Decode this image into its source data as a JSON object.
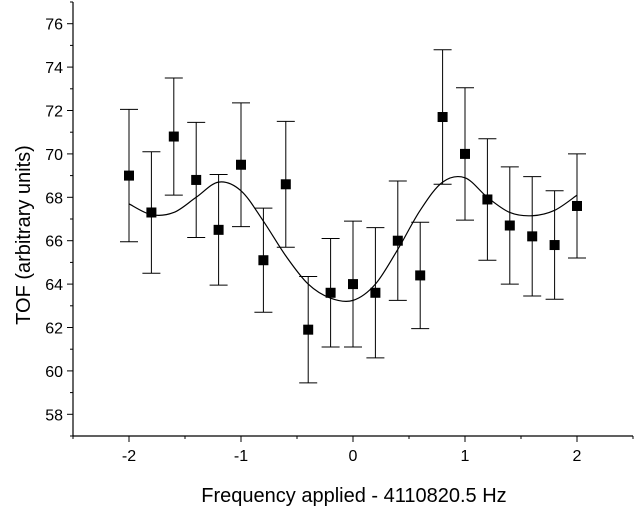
{
  "chart_data": {
    "type": "scatter",
    "title": "",
    "xlabel": "Frequency applied - 4110820.5 Hz",
    "ylabel": "TOF (arbitrary units)",
    "xlim": [
      -2.5,
      2.5
    ],
    "ylim": [
      57,
      77
    ],
    "xticks": [
      "-2",
      "-1",
      "0",
      "1",
      "2"
    ],
    "xtick_values": [
      -2,
      -1,
      0,
      1,
      2
    ],
    "yticks": [
      "58",
      "60",
      "62",
      "64",
      "66",
      "68",
      "70",
      "72",
      "74",
      "76"
    ],
    "ytick_values": [
      58,
      60,
      62,
      64,
      66,
      68,
      70,
      72,
      74,
      76
    ],
    "grid": false,
    "legend": "none",
    "series": [
      {
        "kind": "points-with-error-bars",
        "marker": "filled-square",
        "x": [
          -2.0,
          -1.8,
          -1.6,
          -1.4,
          -1.2,
          -1.0,
          -0.8,
          -0.6,
          -0.4,
          -0.2,
          0.0,
          0.2,
          0.4,
          0.6,
          0.8,
          1.0,
          1.2,
          1.4,
          1.6,
          1.8,
          2.0
        ],
        "y": [
          69.0,
          67.3,
          70.8,
          68.8,
          66.5,
          69.5,
          65.1,
          68.6,
          61.9,
          63.6,
          64.0,
          63.6,
          66.0,
          64.4,
          71.7,
          70.0,
          67.9,
          66.7,
          66.2,
          65.8,
          67.6
        ],
        "y_error": [
          3.05,
          2.8,
          2.7,
          2.65,
          2.55,
          2.85,
          2.4,
          2.9,
          2.45,
          2.5,
          2.9,
          3.0,
          2.75,
          2.45,
          3.1,
          3.05,
          2.8,
          2.7,
          2.75,
          2.5,
          2.4
        ]
      },
      {
        "kind": "fit-curve",
        "x": [
          -2.0,
          -1.8,
          -1.6,
          -1.4,
          -1.2,
          -1.0,
          -0.8,
          -0.6,
          -0.4,
          -0.2,
          0.0,
          0.2,
          0.4,
          0.6,
          0.8,
          1.0,
          1.2,
          1.4,
          1.6,
          1.8,
          2.0
        ],
        "y": [
          67.7,
          67.2,
          67.3,
          68.0,
          68.7,
          68.3,
          66.9,
          65.3,
          64.0,
          63.35,
          63.25,
          64.0,
          65.6,
          67.4,
          68.7,
          68.9,
          68.0,
          67.3,
          67.15,
          67.4,
          68.1
        ]
      }
    ]
  }
}
